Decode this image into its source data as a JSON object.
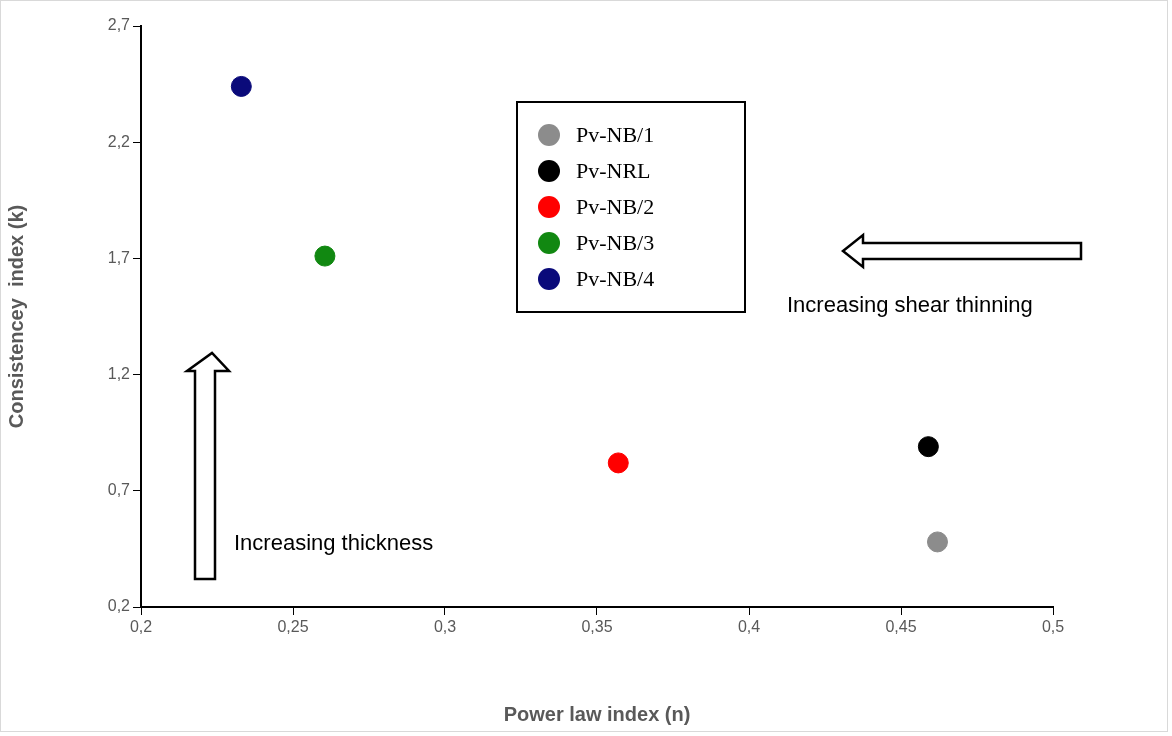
{
  "chart_data": {
    "type": "scatter",
    "xlabel": "Power law index (n)",
    "ylabel": "Consistencey  index (k)",
    "series": [
      {
        "name": "Pv-NB/1",
        "color": "#8c8c8c",
        "x": [
          0.462
        ],
        "values": [
          0.48
        ]
      },
      {
        "name": "Pv-NRL",
        "color": "#000000",
        "x": [
          0.459
        ],
        "values": [
          0.89
        ]
      },
      {
        "name": "Pv-NB/2",
        "color": "#ff0000",
        "x": [
          0.357
        ],
        "values": [
          0.82
        ]
      },
      {
        "name": "Pv-NB/3",
        "color": "#118811",
        "x": [
          0.2605
        ],
        "values": [
          1.71
        ]
      },
      {
        "name": "Pv-NB/4",
        "color": "#0a0a7a",
        "x": [
          0.233
        ],
        "values": [
          2.44
        ]
      }
    ],
    "xlim": [
      0.2,
      0.5
    ],
    "ylim": [
      0.2,
      2.7
    ],
    "xticks": [
      {
        "value": 0.2,
        "label": "0,2"
      },
      {
        "value": 0.25,
        "label": "0,25"
      },
      {
        "value": 0.3,
        "label": "0,3"
      },
      {
        "value": 0.35,
        "label": "0,35"
      },
      {
        "value": 0.4,
        "label": "0,4"
      },
      {
        "value": 0.45,
        "label": "0,45"
      },
      {
        "value": 0.5,
        "label": "0,5"
      }
    ],
    "yticks": [
      {
        "value": 0.2,
        "label": "0,2"
      },
      {
        "value": 0.7,
        "label": "0,7"
      },
      {
        "value": 1.2,
        "label": "1,2"
      },
      {
        "value": 1.7,
        "label": "1,7"
      },
      {
        "value": 2.2,
        "label": "2,2"
      },
      {
        "value": 2.7,
        "label": "2,7"
      }
    ],
    "annotations": [
      "Increasing thickness",
      "Increasing shear thinning"
    ],
    "legend": "top",
    "marker": "circle",
    "grid": false
  }
}
